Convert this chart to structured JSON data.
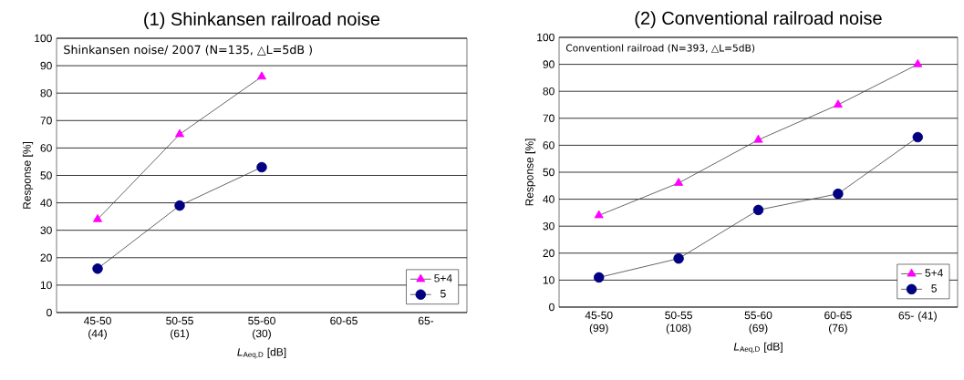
{
  "chart_data": [
    {
      "type": "line",
      "title": "(1) Shinkansen railroad noise",
      "xlabel": "*L*$_{Aeq,D}$ [dB]",
      "ylabel": "Response [%]",
      "categories": [
        "45-50 (44)",
        "50-55 (61)",
        "55-60 (30)",
        "60-65",
        "65-"
      ],
      "series": [
        {
          "name": "5+4",
          "color": "#ff00ff",
          "marker": "triangle",
          "values": [
            34,
            65,
            86,
            null,
            null
          ]
        },
        {
          "name": "5",
          "color": "#000080",
          "marker": "circle",
          "values": [
            16,
            39,
            53,
            null,
            null
          ]
        }
      ],
      "ylim": [
        0,
        100
      ],
      "yticks": [
        0,
        10,
        20,
        30,
        40,
        50,
        60,
        70,
        80,
        90,
        100
      ],
      "grid": "y",
      "legend": "bottom right",
      "annotations": [
        "Shinkansen noise/ 2007 (N=135, △L=5dB )"
      ]
    },
    {
      "type": "line",
      "title": "(2) Conventional railroad noise",
      "xlabel": "*L*$_{Aeq,D}$ [dB]",
      "ylabel": "Response [%]",
      "categories": [
        "45-50 (99)",
        "50-55 (108)",
        "55-60 (69)",
        "60-65 (76)",
        "65- (41)"
      ],
      "series": [
        {
          "name": "5+4",
          "color": "#ff00ff",
          "marker": "triangle",
          "values": [
            34,
            46,
            62,
            75,
            90
          ]
        },
        {
          "name": "5",
          "color": "#000080",
          "marker": "circle",
          "values": [
            11,
            18,
            36,
            42,
            63
          ]
        }
      ],
      "ylim": [
        0,
        100
      ],
      "yticks": [
        0,
        10,
        20,
        30,
        40,
        50,
        60,
        70,
        80,
        90,
        100
      ],
      "grid": "y",
      "legend": "bottom right",
      "annotations": [
        "Conventionl railroad (N=393, △L=5dB)"
      ]
    }
  ]
}
